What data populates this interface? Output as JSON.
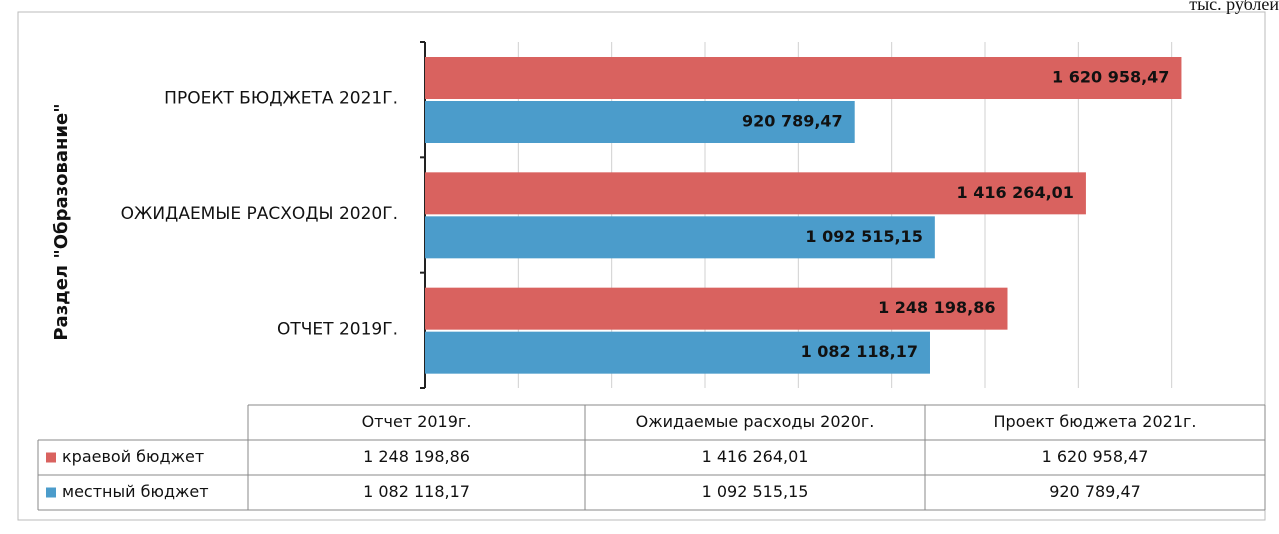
{
  "chart_data": {
    "type": "hbar",
    "unit_note": "тыс. рублей",
    "y_axis_label": "Раздел \"Образование\"",
    "categories": [
      "Отчет 2019г.",
      "Ожидаемые расходы 2020г.",
      "Проект бюджета 2021г."
    ],
    "series": [
      {
        "name": "краевой бюджет",
        "color": "#d9625f",
        "values": [
          1248198.86,
          1416264.01,
          1620958.47
        ],
        "value_labels": [
          "1 248 198,86",
          "1 416 264,01",
          "1 620 958,47"
        ]
      },
      {
        "name": "местный бюджет",
        "color": "#4b9ccb",
        "values": [
          1082118.17,
          1092515.15,
          920789.47
        ],
        "value_labels": [
          "1 082 118,17",
          "1 092 515,15",
          "920 789,47"
        ]
      }
    ],
    "xlim": [
      0,
      1800000
    ],
    "xticks": [
      0,
      200000,
      400000,
      600000,
      800000,
      1000000,
      1200000,
      1400000,
      1600000
    ],
    "grid": true
  }
}
